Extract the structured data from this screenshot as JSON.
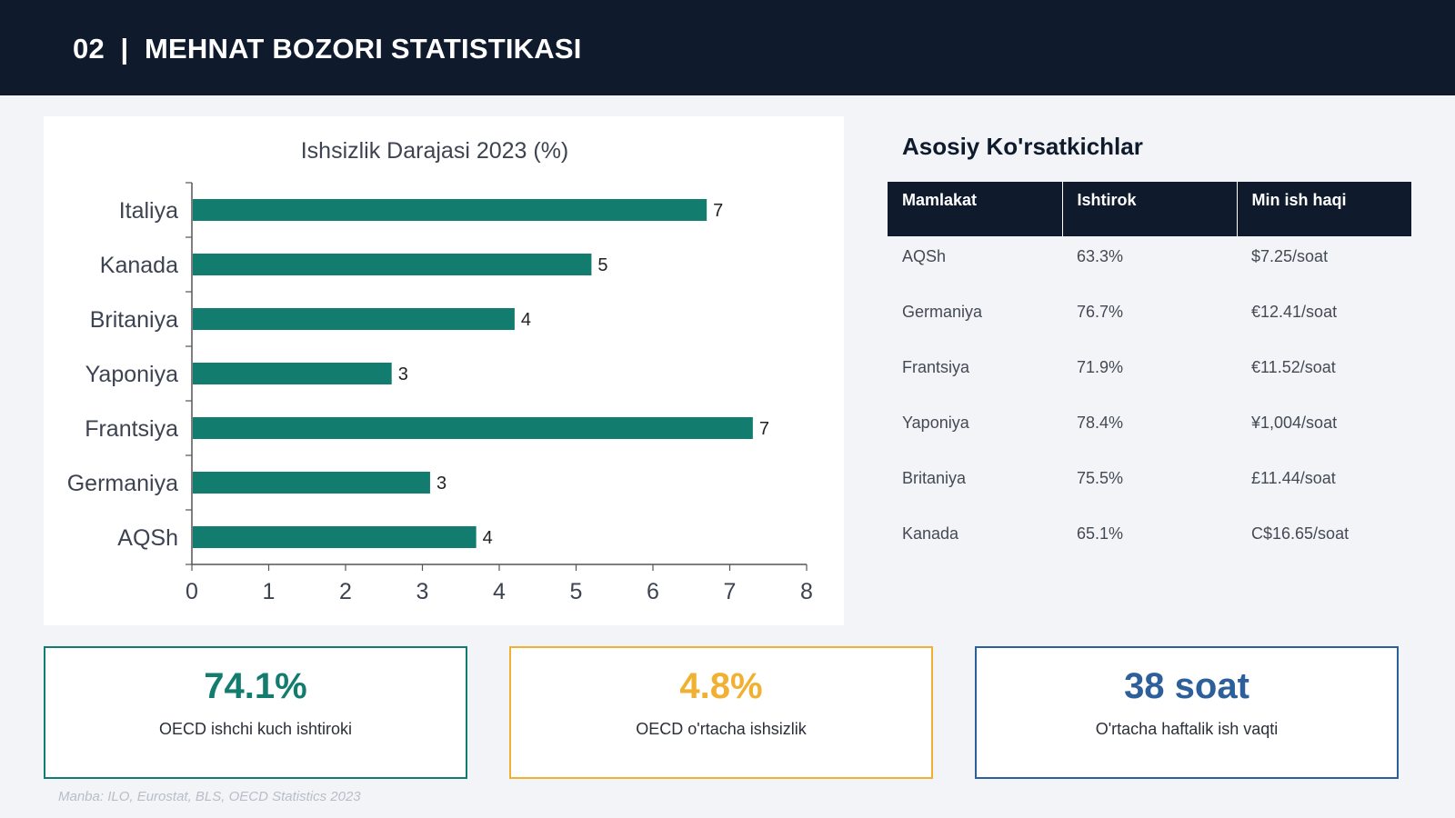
{
  "header": {
    "title": "02  |  MEHNAT BOZORI STATISTIKASI"
  },
  "chart_data": {
    "type": "bar",
    "orientation": "horizontal",
    "title": "Ishsizlik Darajasi 2023 (%)",
    "categories": [
      "Italiya",
      "Kanada",
      "Britaniya",
      "Yaponiya",
      "Frantsiya",
      "Germaniya",
      "AQSh"
    ],
    "values": [
      6.7,
      5.2,
      4.2,
      2.6,
      7.3,
      3.1,
      3.7
    ],
    "data_labels": [
      "7",
      "5",
      "4",
      "3",
      "7",
      "3",
      "4"
    ],
    "xlim": [
      0,
      8
    ],
    "x_ticks": [
      "0",
      "1",
      "2",
      "3",
      "4",
      "5",
      "6",
      "7",
      "8"
    ],
    "bar_color": "#127c6e",
    "grid": false,
    "legend": "none"
  },
  "indicators": {
    "title": "Asosiy Ko'rsatkichlar",
    "columns": [
      "Mamlakat",
      "Ishtirok",
      "Min ish haqi"
    ],
    "rows": [
      [
        "AQSh",
        "63.3%",
        "$7.25/soat"
      ],
      [
        "Germaniya",
        "76.7%",
        "€12.41/soat"
      ],
      [
        "Frantsiya",
        "71.9%",
        "€11.52/soat"
      ],
      [
        "Yaponiya",
        "78.4%",
        "¥1,004/soat"
      ],
      [
        "Britaniya",
        "75.5%",
        "£11.44/soat"
      ],
      [
        "Kanada",
        "65.1%",
        "C$16.65/soat"
      ]
    ]
  },
  "kpis": [
    {
      "value": "74.1%",
      "label": "OECD ishchi kuch ishtiroki",
      "color": "#127c6e"
    },
    {
      "value": "4.8%",
      "label": "OECD o'rtacha ishsizlik",
      "color": "#f0b132"
    },
    {
      "value": "38 soat",
      "label": "O'rtacha haftalik ish vaqti",
      "color": "#2d5f9a"
    }
  ],
  "source": "Manba: ILO, Eurostat, BLS, OECD Statistics 2023"
}
